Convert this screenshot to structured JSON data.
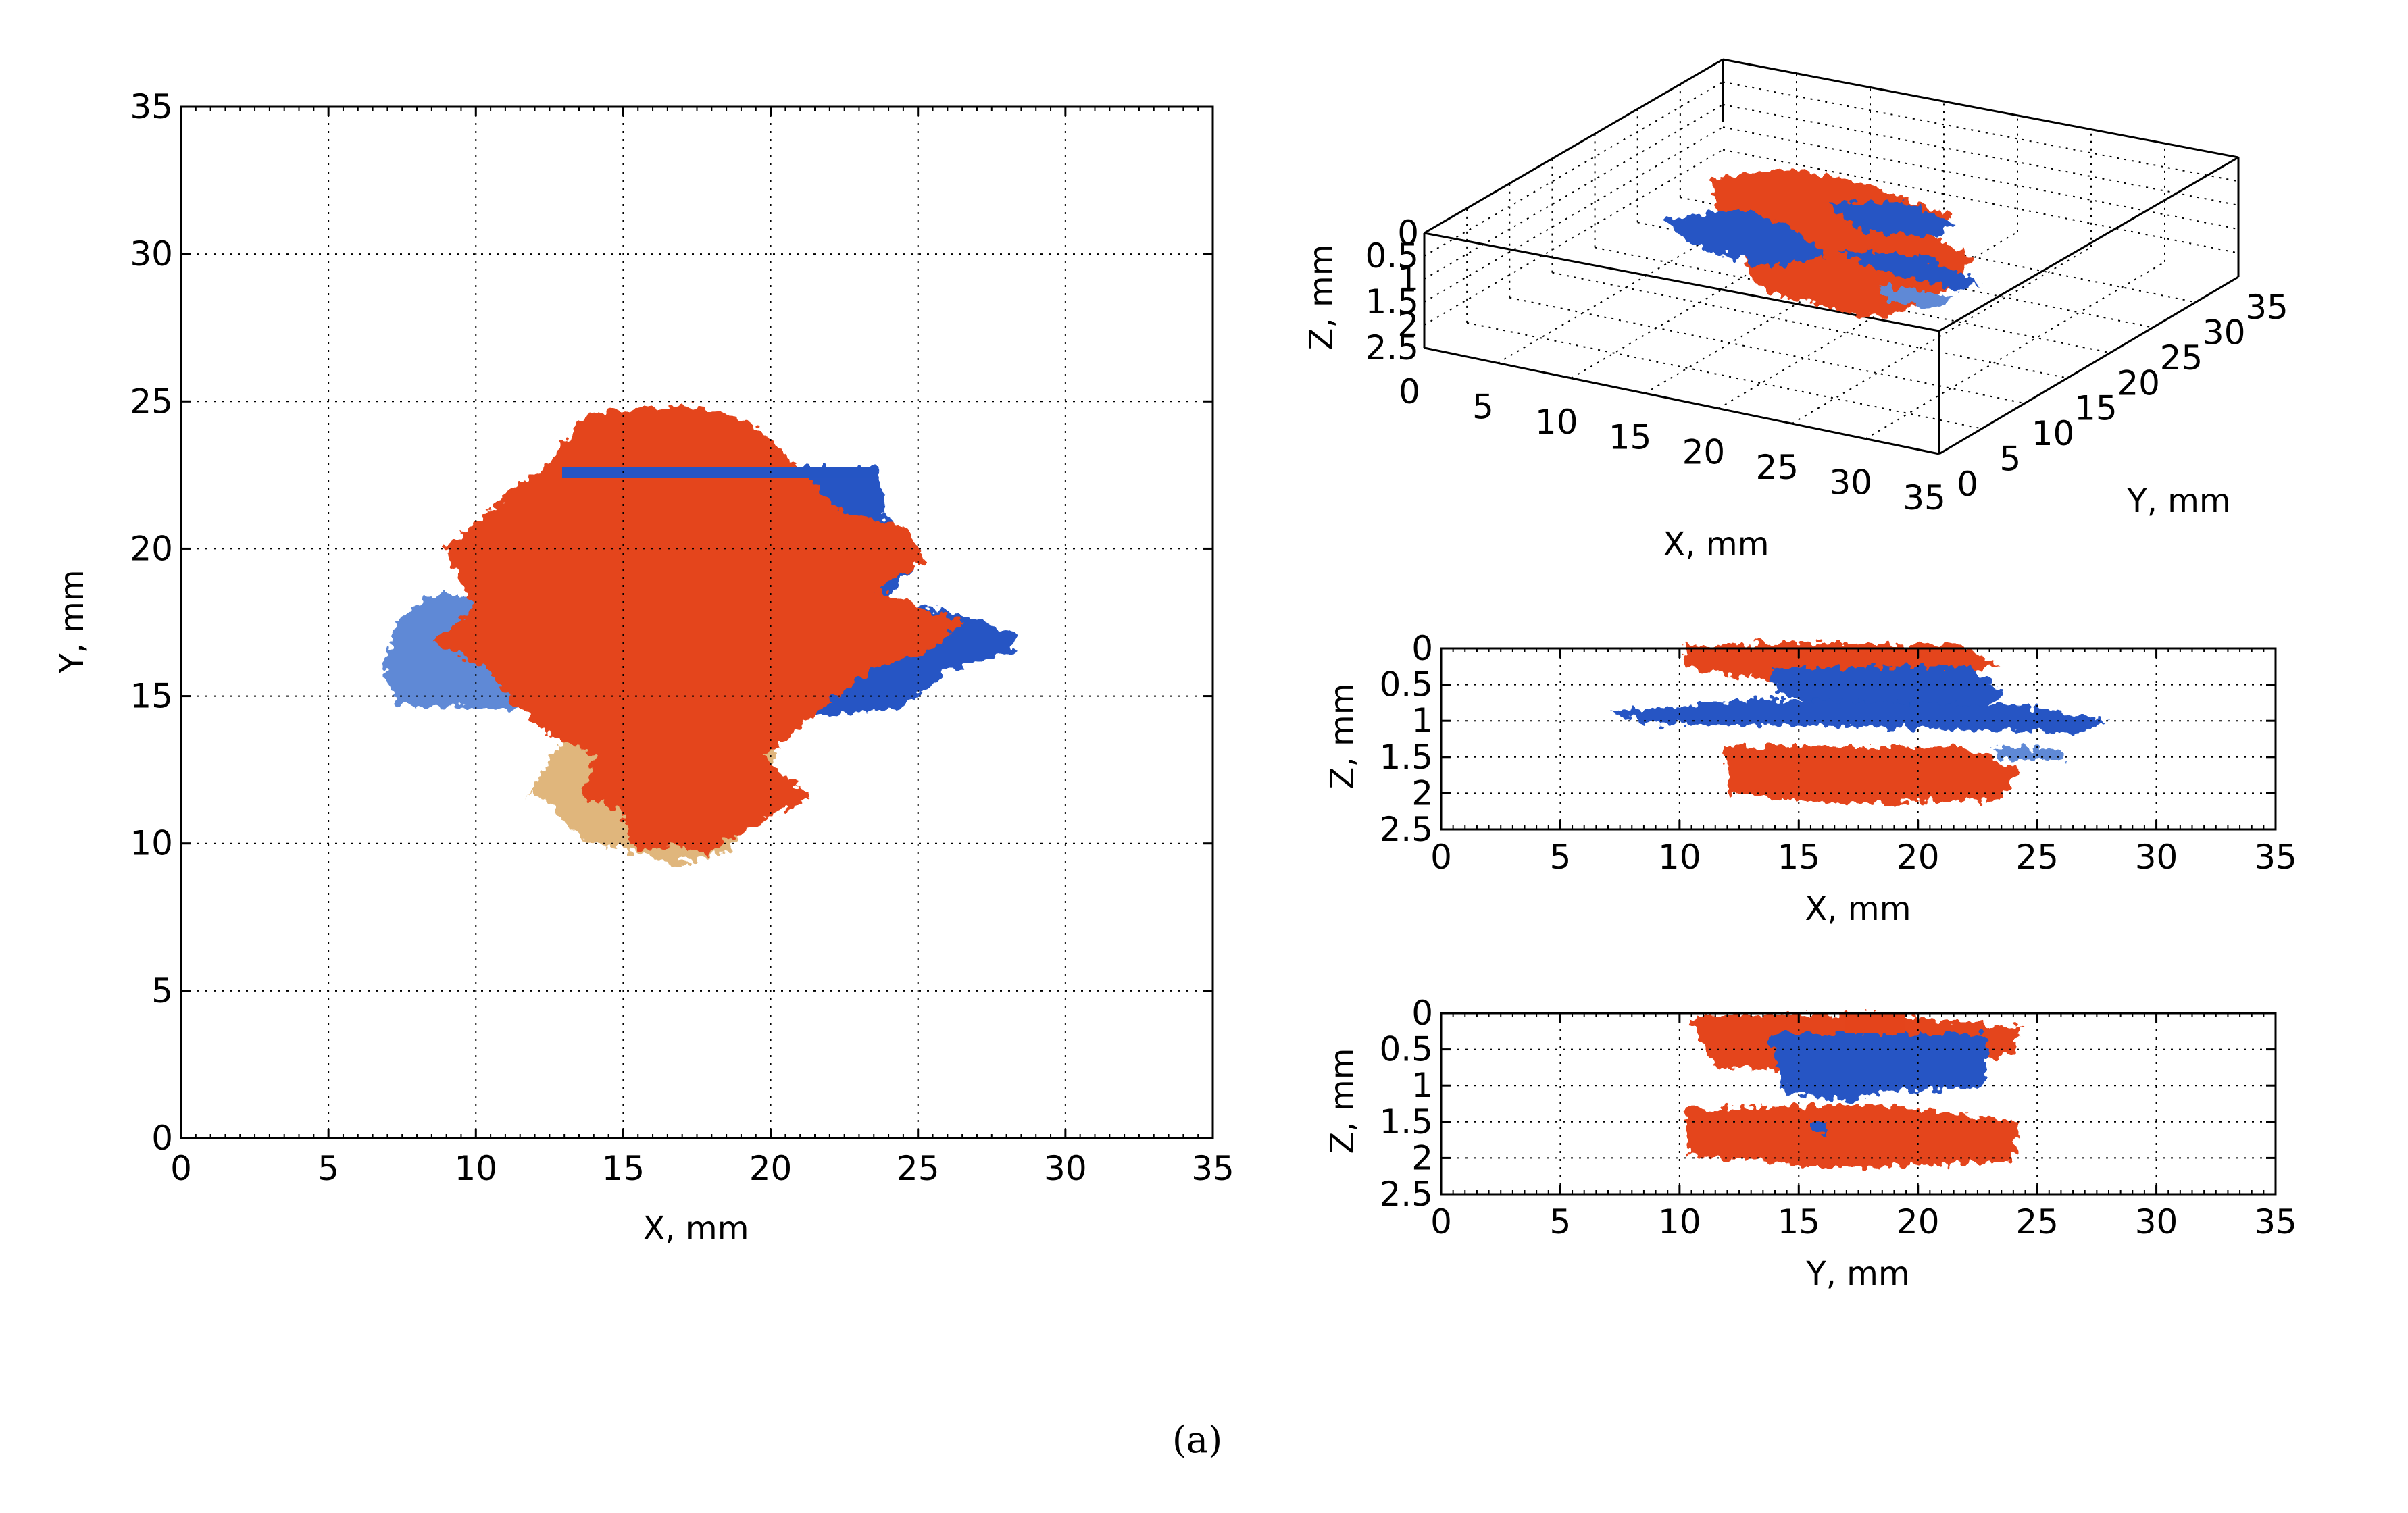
{
  "caption": "(a)",
  "colors": {
    "damage_orange": "#E4441B",
    "damage_tan": "#DDAE6E",
    "damage_blue": "#2555C4",
    "damage_lightblue": "#5E89D6",
    "grid": "#000000"
  },
  "chart_data": [
    {
      "type": "scatter",
      "view": "top X-Y projection",
      "xlabel": "X, mm",
      "ylabel": "Y, mm",
      "xlim": [
        0,
        35
      ],
      "ylim": [
        0,
        35
      ],
      "xticks": [
        "0",
        "5",
        "10",
        "15",
        "20",
        "25",
        "30",
        "35"
      ],
      "yticks": [
        "0",
        "5",
        "10",
        "15",
        "20",
        "25",
        "30",
        "35"
      ],
      "grid": true,
      "series": [
        {
          "color": "blue",
          "regions": [
            {
              "x": [
                13,
                23.5
              ],
              "y": [
                15.5,
                22.6
              ]
            },
            {
              "x": [
                7,
                12
              ],
              "y": [
                15,
                18
              ]
            },
            {
              "x": [
                21,
                28
              ],
              "y": [
                15,
                17.5
              ]
            }
          ]
        },
        {
          "color": "orange",
          "regions": [
            {
              "x": [
                12,
                24
              ],
              "y": [
                10,
                24.5
              ]
            }
          ]
        }
      ]
    },
    {
      "type": "scatter",
      "view": "3D perspective",
      "xlabel": "X, mm",
      "ylabel": "Y, mm",
      "zlabel": "Z, mm",
      "xticks": [
        "0",
        "5",
        "10",
        "15",
        "20",
        "25",
        "30",
        "35"
      ],
      "yticks": [
        "0",
        "5",
        "10",
        "15",
        "20",
        "25",
        "30",
        "35"
      ],
      "zticks": [
        "0",
        "0.5",
        "1",
        "1.5",
        "2",
        "2.5"
      ],
      "grid": true
    },
    {
      "type": "scatter",
      "view": "side X-Z projection",
      "xlabel": "X, mm",
      "ylabel": "Z, mm",
      "xlim": [
        0,
        35
      ],
      "ylim": [
        0,
        2.5
      ],
      "xticks": [
        "0",
        "5",
        "10",
        "15",
        "20",
        "25",
        "30",
        "35"
      ],
      "yticks": [
        "0",
        "0.5",
        "1",
        "1.5",
        "2",
        "2.5"
      ],
      "grid": true,
      "series": [
        {
          "color": "blue",
          "regions": [
            {
              "x": [
                7,
                28
              ],
              "z": [
                0.9,
                1.1
              ]
            },
            {
              "x": [
                13.5,
                23
              ],
              "z": [
                0.4,
                0.9
              ]
            }
          ]
        },
        {
          "color": "orange",
          "regions": [
            {
              "x": [
                10,
                25
              ],
              "z": [
                0,
                2.1
              ]
            }
          ]
        }
      ]
    },
    {
      "type": "scatter",
      "view": "side Y-Z projection",
      "xlabel": "Y, mm",
      "ylabel": "Z, mm",
      "xlim": [
        0,
        35
      ],
      "ylim": [
        0,
        2.5
      ],
      "xticks": [
        "0",
        "5",
        "10",
        "15",
        "20",
        "25",
        "30",
        "35"
      ],
      "yticks": [
        "0",
        "0.5",
        "1",
        "1.5",
        "2",
        "2.5"
      ],
      "grid": true,
      "series": [
        {
          "color": "blue",
          "regions": [
            {
              "y": [
                13.5,
                22.6
              ],
              "z": [
                0.4,
                1.3
              ]
            }
          ]
        },
        {
          "color": "orange",
          "regions": [
            {
              "y": [
                10,
                24
              ],
              "z": [
                0,
                2.1
              ]
            }
          ]
        }
      ]
    }
  ]
}
